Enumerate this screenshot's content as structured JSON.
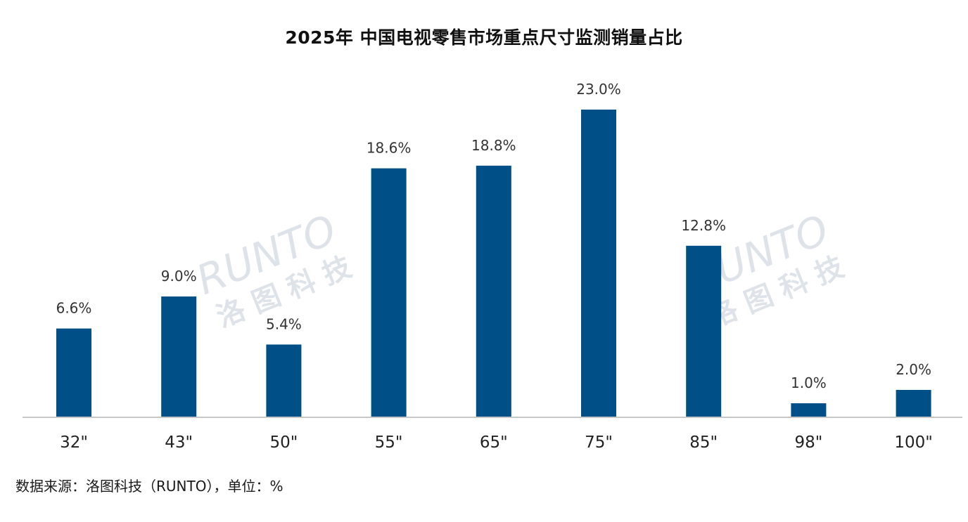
{
  "title": "2025年 中国电视零售市场重点尺寸监测销量占比",
  "watermark": {
    "brand": "RUNTO",
    "sub": "洛图科技"
  },
  "source_note": "数据来源：洛图科技（RUNTO），单位：%",
  "colors": {
    "bar": "#004f86",
    "axis": "#c8c8c8"
  },
  "chart_data": {
    "type": "bar",
    "title": "2025年 中国电视零售市场重点尺寸监测销量占比",
    "categories": [
      "32\"",
      "43\"",
      "50\"",
      "55\"",
      "65\"",
      "75\"",
      "85\"",
      "98\"",
      "100\""
    ],
    "values": [
      6.6,
      9.0,
      5.4,
      18.6,
      18.8,
      23.0,
      12.8,
      1.0,
      2.0
    ],
    "data_labels": [
      "6.6%",
      "9.0%",
      "5.4%",
      "18.6%",
      "18.8%",
      "23.0%",
      "12.8%",
      "1.0%",
      "2.0%"
    ],
    "unit": "%",
    "xlabel": "",
    "ylabel": "",
    "ylim": [
      0,
      23.0
    ],
    "grid": false,
    "legend": "none"
  }
}
